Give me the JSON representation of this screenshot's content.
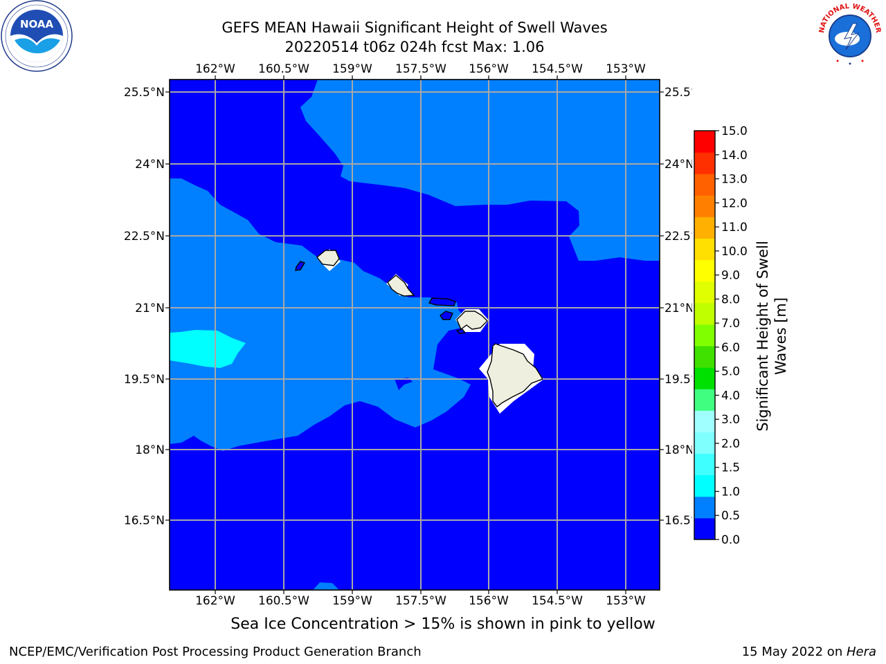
{
  "header": {
    "title_line1": "GEFS MEAN Hawaii Significant Height of Swell Waves",
    "title_line2": "20220514 t06z 024h fcst   Max: 1.06"
  },
  "logos": {
    "left": {
      "name": "noaa-logo",
      "text": "NOAA",
      "ring_text": "NATIONAL OCEANIC AND ATMOSPHERIC ADMINISTRATION · U.S. DEPARTMENT OF COMMERCE"
    },
    "right": {
      "name": "nws-logo",
      "ring_text": "NATIONAL WEATHER SERVICE"
    }
  },
  "map": {
    "lon_labels": [
      "162°W",
      "160.5°W",
      "159°W",
      "157.5°W",
      "156°W",
      "154.5°W",
      "153°W"
    ],
    "lat_labels_left": [
      "25.5°N",
      "24°N",
      "22.5°N",
      "21°N",
      "19.5°N",
      "18°N",
      "16.5°N"
    ],
    "lat_labels_right": [
      "25.5°N",
      "24°N",
      "22.5°N",
      "21°N",
      "19.5°N",
      "18°N",
      "16.5°N"
    ],
    "colors": {
      "deep": "#0000ff",
      "mid": "#0080ff",
      "light": "#00ffff",
      "land": "#efefe0",
      "grid": "#a8a8a8"
    }
  },
  "colorbar": {
    "label_line1": "Significant Height of Swell",
    "label_line2": "Waves [m]",
    "ticks": [
      "0.0",
      "0.5",
      "1.0",
      "1.5",
      "2.0",
      "3.0",
      "4.0",
      "5.0",
      "6.0",
      "7.0",
      "8.0",
      "9.0",
      "10.0",
      "11.0",
      "12.0",
      "13.0",
      "14.0",
      "15.0"
    ],
    "colors": [
      "#0000ff",
      "#0080ff",
      "#00ffff",
      "#40ffff",
      "#80ffff",
      "#a0ffff",
      "#40ff80",
      "#00e000",
      "#40e000",
      "#80ff00",
      "#c0ff00",
      "#e0ff00",
      "#ffff00",
      "#ffe000",
      "#ffb000",
      "#ff8000",
      "#ff6000",
      "#ff3000",
      "#ff0000"
    ]
  },
  "note": "Sea Ice Concentration > 15% is shown in pink to yellow",
  "footer": {
    "left": "NCEP/EMC/Verification Post Processing Product Generation Branch",
    "right_date": "15 May 2022 on ",
    "right_host": "Hera"
  }
}
